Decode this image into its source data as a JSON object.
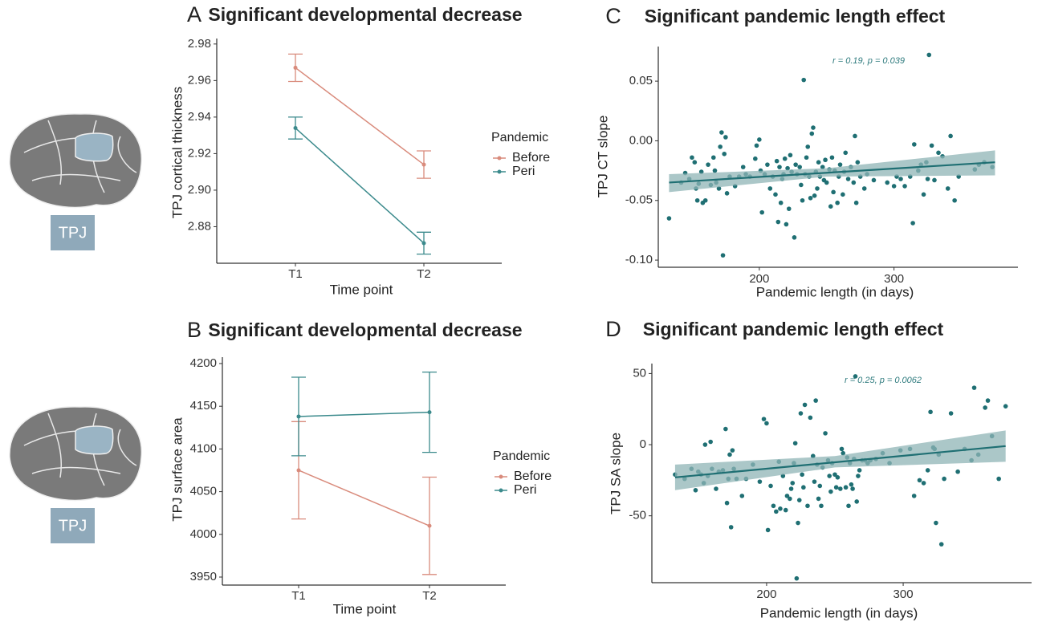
{
  "side_labels": [
    "TPJ",
    "TPJ"
  ],
  "chart_data": [
    {
      "type": "line",
      "panel": "A",
      "title": "Significant developmental decrease",
      "xlabel": "Time point",
      "ylabel": "TPJ cortical thickness",
      "legend_title": "Pandemic",
      "categories": [
        "T1",
        "T2"
      ],
      "series": [
        {
          "name": "Before",
          "color": "#d98b7c",
          "values": [
            2.967,
            2.914
          ],
          "errors": [
            0.0075,
            0.0075
          ]
        },
        {
          "name": "Peri",
          "color": "#3b8a8c",
          "values": [
            2.934,
            2.871
          ],
          "errors": [
            0.006,
            0.006
          ]
        }
      ],
      "ylim": [
        2.86,
        2.983
      ],
      "yticks": [
        2.88,
        {
          "value": 2.9,
          "label": "2.90"
        },
        2.92,
        2.94,
        2.96,
        2.98
      ]
    },
    {
      "type": "line",
      "panel": "B",
      "title": "Significant developmental decrease",
      "xlabel": "Time point",
      "ylabel": "TPJ surface area",
      "legend_title": "Pandemic",
      "categories": [
        "T1",
        "T2"
      ],
      "series": [
        {
          "name": "Before",
          "color": "#d98b7c",
          "values": [
            4075,
            4010
          ],
          "errors": [
            57,
            57
          ]
        },
        {
          "name": "Peri",
          "color": "#3b8a8c",
          "values": [
            4138,
            4143
          ],
          "errors": [
            46,
            47
          ]
        }
      ],
      "ylim": [
        3940.6,
        4207.5
      ],
      "yticks": [
        3950,
        4000,
        4050,
        4100,
        4150,
        4200
      ]
    },
    {
      "type": "scatter",
      "panel": "C",
      "title": "Significant pandemic length effect",
      "xlabel": "Pandemic length (in days)",
      "ylabel": "TPJ CT slope",
      "annotation": "r = 0.19, p = 0.039",
      "color": "#1f6f73",
      "band_color": "#8fb4b6",
      "x": [
        133,
        142,
        145,
        148,
        150,
        152,
        153,
        154,
        155,
        157,
        158,
        160,
        162,
        164,
        166,
        167,
        168,
        170,
        171,
        172,
        173,
        174,
        175,
        176,
        178,
        182,
        185,
        188,
        190,
        193,
        197,
        198,
        200,
        201,
        202,
        204,
        206,
        208,
        210,
        212,
        213,
        214,
        215,
        216,
        217,
        218,
        219,
        220,
        221,
        222,
        223,
        224,
        226,
        227,
        228,
        230,
        231,
        232,
        233,
        234,
        235,
        236,
        237,
        238,
        239,
        240,
        241,
        242,
        243,
        244,
        245,
        247,
        248,
        249,
        250,
        252,
        253,
        254,
        255,
        256,
        258,
        259,
        260,
        262,
        263,
        264,
        266,
        268,
        270,
        271,
        272,
        273,
        275,
        278,
        280,
        285,
        295,
        300,
        302,
        305,
        308,
        312,
        314,
        315,
        318,
        320,
        322,
        324,
        325,
        326,
        328,
        330,
        333,
        336,
        340,
        342,
        345,
        348,
        360,
        363,
        367,
        373
      ],
      "y": [
        -0.065,
        -0.035,
        -0.027,
        -0.032,
        -0.014,
        -0.018,
        -0.04,
        -0.05,
        -0.036,
        -0.026,
        -0.052,
        -0.05,
        -0.02,
        -0.037,
        -0.014,
        -0.025,
        -0.035,
        -0.04,
        -0.005,
        0.007,
        -0.096,
        -0.011,
        0.003,
        -0.044,
        -0.03,
        -0.038,
        -0.03,
        -0.022,
        -0.028,
        -0.03,
        -0.015,
        -0.004,
        0.001,
        -0.025,
        -0.06,
        -0.028,
        -0.02,
        -0.04,
        -0.03,
        -0.045,
        -0.017,
        -0.068,
        -0.022,
        -0.052,
        -0.032,
        -0.028,
        -0.015,
        -0.07,
        -0.023,
        -0.057,
        -0.012,
        -0.026,
        -0.081,
        -0.02,
        -0.028,
        -0.022,
        -0.037,
        -0.05,
        0.051,
        -0.028,
        -0.014,
        -0.005,
        -0.03,
        -0.048,
        0.006,
        0.011,
        -0.046,
        -0.026,
        -0.04,
        -0.018,
        -0.03,
        -0.022,
        -0.033,
        -0.016,
        -0.035,
        -0.024,
        -0.055,
        -0.014,
        -0.043,
        -0.025,
        -0.052,
        -0.03,
        -0.02,
        -0.045,
        -0.026,
        -0.01,
        -0.032,
        -0.022,
        -0.035,
        0.004,
        -0.052,
        -0.018,
        -0.03,
        -0.04,
        -0.028,
        -0.033,
        -0.035,
        -0.038,
        -0.03,
        -0.032,
        -0.038,
        -0.03,
        -0.069,
        -0.003,
        -0.025,
        -0.02,
        -0.045,
        -0.018,
        -0.032,
        0.072,
        -0.004,
        -0.033,
        -0.01,
        -0.013,
        -0.04,
        0.004,
        -0.05,
        -0.03,
        -0.024,
        -0.02,
        -0.018,
        -0.022
      ],
      "fit": {
        "x": [
          133,
          375
        ],
        "y": [
          -0.035,
          -0.018
        ]
      },
      "band": {
        "x": [
          133,
          250,
          375
        ],
        "lower": [
          -0.043,
          -0.03,
          -0.029
        ],
        "upper": [
          -0.028,
          -0.023,
          -0.008
        ]
      },
      "xlim": [
        125,
        392
      ],
      "ylim": [
        -0.106,
        0.079
      ],
      "xticks": [
        200,
        300
      ],
      "yticks": [
        {
          "value": -0.1,
          "label": "-0.10"
        },
        -0.05,
        {
          "value": 0,
          "label": "0.00"
        },
        0.05
      ]
    },
    {
      "type": "scatter",
      "panel": "D",
      "title": "Significant pandemic length effect",
      "xlabel": "Pandemic length (in days)",
      "ylabel": "TPJ SA slope",
      "annotation": "r = 0.25, p = 0.0062",
      "color": "#1f6f73",
      "band_color": "#8fb4b6",
      "x": [
        133,
        140,
        145,
        148,
        150,
        152,
        154,
        155,
        157,
        159,
        160,
        163,
        165,
        168,
        170,
        171,
        172,
        173,
        174,
        175,
        176,
        178,
        182,
        185,
        190,
        195,
        198,
        200,
        201,
        203,
        205,
        207,
        209,
        210,
        212,
        214,
        215,
        217,
        218,
        219,
        220,
        221,
        222,
        223,
        224,
        225,
        226,
        227,
        228,
        230,
        232,
        234,
        235,
        236,
        237,
        238,
        239,
        240,
        241,
        243,
        245,
        246,
        247,
        248,
        250,
        251,
        252,
        254,
        255,
        256,
        258,
        259,
        260,
        261,
        262,
        263,
        264,
        265,
        266,
        267,
        268,
        270,
        272,
        274,
        276,
        280,
        285,
        290,
        298,
        305,
        308,
        312,
        315,
        318,
        320,
        322,
        323,
        324,
        326,
        328,
        330,
        335,
        340,
        345,
        350,
        352,
        355,
        360,
        362,
        365,
        370,
        375
      ],
      "y": [
        -21,
        -24,
        -17,
        -32,
        -19,
        -21,
        -27,
        0,
        -22,
        2,
        -17,
        -31,
        -19,
        -18,
        11,
        -41,
        -24,
        -7,
        -58,
        -4,
        -17,
        -24,
        -36,
        -24,
        -14,
        -26,
        18,
        15,
        -60,
        -29,
        -43,
        -47,
        -12,
        -45,
        -22,
        -46,
        -36,
        -38,
        -31,
        -27,
        -13,
        1,
        -94,
        -55,
        -39,
        22,
        -21,
        -30,
        28,
        -43,
        19,
        -8,
        -26,
        31,
        -14,
        -38,
        -29,
        -43,
        -16,
        8,
        -11,
        -22,
        -33,
        -13,
        -21,
        -30,
        -23,
        -31,
        -3,
        -6,
        -30,
        -9,
        -43,
        -13,
        -28,
        -31,
        -10,
        48,
        -40,
        -22,
        -18,
        -11,
        -11,
        -13,
        -11,
        -10,
        -6,
        -13,
        -4,
        -3,
        -36,
        -25,
        -27,
        -18,
        23,
        -2,
        -3,
        -55,
        -7,
        -70,
        -24,
        22,
        -19,
        -3,
        -11,
        40,
        -7,
        26,
        31,
        6,
        -24,
        27
      ],
      "fit": {
        "x": [
          133,
          375
        ],
        "y": [
          -23,
          -1
        ]
      },
      "band": {
        "x": [
          133,
          250,
          375
        ],
        "lower": [
          -32,
          -16,
          -12
        ],
        "upper": [
          -14,
          -8,
          10
        ]
      },
      "xlim": [
        116,
        394
      ],
      "ylim": [
        -97,
        57
      ],
      "xticks": [
        200,
        300
      ],
      "yticks": [
        -50,
        0,
        50
      ]
    }
  ]
}
